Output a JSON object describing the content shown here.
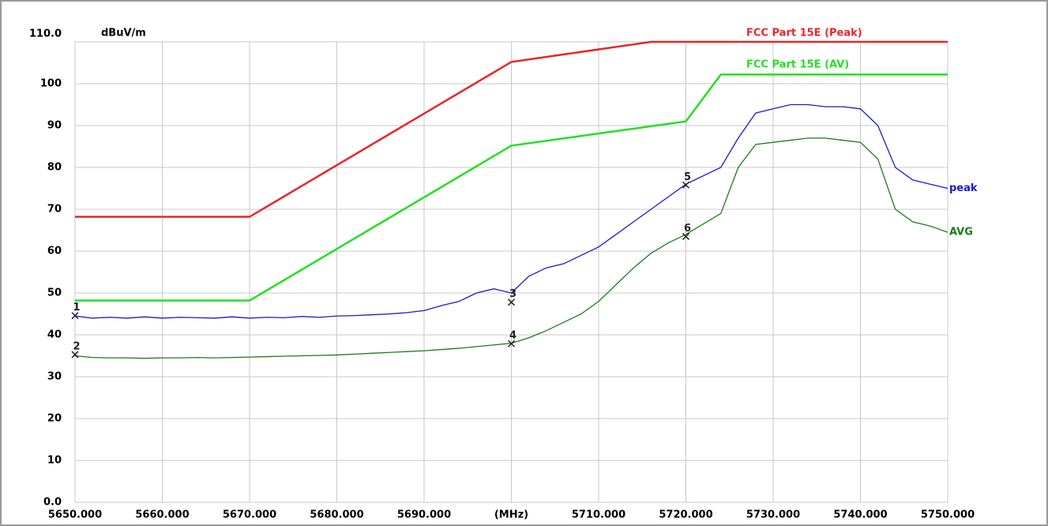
{
  "chart_data": {
    "type": "line",
    "y_unit": "dBuV/m",
    "xlim": [
      5650,
      5750
    ],
    "ylim": [
      0,
      110
    ],
    "grid": true,
    "xticks": [
      {
        "value": 5650,
        "label": "5650.000"
      },
      {
        "value": 5660,
        "label": "5660.000"
      },
      {
        "value": 5670,
        "label": "5670.000"
      },
      {
        "value": 5680,
        "label": "5680.000"
      },
      {
        "value": 5690,
        "label": "5690.000"
      },
      {
        "value": 5700,
        "label": "(MHz)"
      },
      {
        "value": 5710,
        "label": "5710.000"
      },
      {
        "value": 5720,
        "label": "5720.000"
      },
      {
        "value": 5730,
        "label": "5730.000"
      },
      {
        "value": 5740,
        "label": "5740.000"
      },
      {
        "value": 5750,
        "label": "5750.000"
      }
    ],
    "yticks": [
      {
        "value": 0,
        "label": "0.0"
      },
      10,
      20,
      30,
      40,
      50,
      60,
      70,
      80,
      90,
      100,
      {
        "value": 110,
        "label": "110.0"
      }
    ],
    "series": [
      {
        "name": "FCC Part 15E  (Peak)",
        "color": "#e8262a",
        "x": [
          5650,
          5670,
          5700,
          5716,
          5750
        ],
        "values": [
          68.2,
          68.2,
          105.2,
          110,
          110
        ]
      },
      {
        "name": "FCC Part 15E  (AV)",
        "color": "#22e022",
        "x": [
          5650,
          5670,
          5700,
          5720,
          5724,
          5750
        ],
        "values": [
          48.2,
          48.2,
          85.2,
          91,
          102.2,
          102.2
        ]
      },
      {
        "name": "peak",
        "color": "#1a1ad0",
        "x": [
          5650,
          5652,
          5654,
          5656,
          5658,
          5660,
          5662,
          5664,
          5666,
          5668,
          5670,
          5672,
          5674,
          5676,
          5678,
          5680,
          5682,
          5684,
          5686,
          5688,
          5690,
          5692,
          5694,
          5696,
          5698,
          5700,
          5702,
          5704,
          5706,
          5708,
          5710,
          5712,
          5714,
          5716,
          5718,
          5720,
          5722,
          5724,
          5726,
          5728,
          5730,
          5732,
          5734,
          5736,
          5738,
          5740,
          5742,
          5744,
          5746,
          5748,
          5750
        ],
        "values": [
          44.5,
          44,
          44.2,
          44,
          44.3,
          44,
          44.2,
          44.1,
          44,
          44.3,
          44,
          44.2,
          44.1,
          44.4,
          44.2,
          44.5,
          44.6,
          44.8,
          45,
          45.3,
          45.8,
          47,
          48,
          50,
          51,
          50,
          54,
          56,
          57,
          59,
          61,
          64,
          67,
          70,
          73,
          76,
          78,
          80,
          87,
          93,
          94,
          95,
          95,
          94.5,
          94.5,
          94,
          90,
          80,
          77,
          76,
          75
        ]
      },
      {
        "name": "AVG",
        "color": "#1e7a1e",
        "x": [
          5650,
          5652,
          5654,
          5656,
          5658,
          5660,
          5662,
          5664,
          5666,
          5668,
          5670,
          5672,
          5674,
          5676,
          5678,
          5680,
          5682,
          5684,
          5686,
          5688,
          5690,
          5692,
          5694,
          5696,
          5698,
          5700,
          5702,
          5704,
          5706,
          5708,
          5710,
          5712,
          5714,
          5716,
          5718,
          5720,
          5722,
          5724,
          5726,
          5728,
          5730,
          5732,
          5734,
          5736,
          5738,
          5740,
          5742,
          5744,
          5746,
          5748,
          5750
        ],
        "values": [
          35,
          34.6,
          34.5,
          34.5,
          34.4,
          34.5,
          34.5,
          34.6,
          34.5,
          34.6,
          34.7,
          34.8,
          34.9,
          35,
          35.1,
          35.2,
          35.4,
          35.6,
          35.8,
          36,
          36.2,
          36.5,
          36.8,
          37.2,
          37.6,
          38,
          39.3,
          41,
          43,
          45,
          48,
          52,
          56,
          59.5,
          62,
          64,
          66.5,
          69,
          80,
          85.5,
          86,
          86.5,
          87,
          87,
          86.5,
          86,
          82,
          70,
          67,
          66,
          64.5
        ]
      }
    ],
    "markers": [
      {
        "label": "1",
        "x": 5650,
        "y": 44.6
      },
      {
        "label": "2",
        "x": 5650,
        "y": 35.3
      },
      {
        "label": "3",
        "x": 5700,
        "y": 47.8
      },
      {
        "label": "4",
        "x": 5700,
        "y": 37.9
      },
      {
        "label": "5",
        "x": 5720,
        "y": 75.8
      },
      {
        "label": "6",
        "x": 5720,
        "y": 63.5
      }
    ]
  }
}
